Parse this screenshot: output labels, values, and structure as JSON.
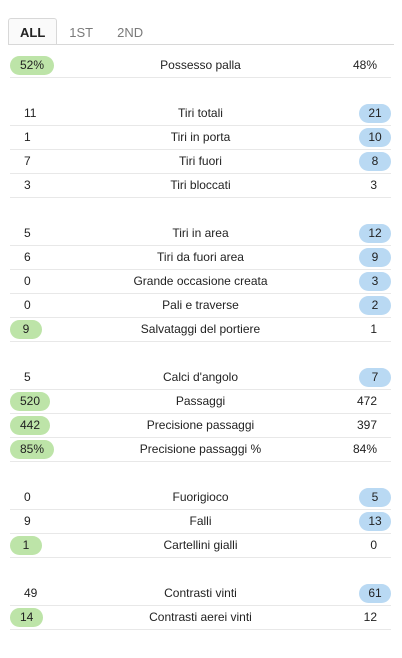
{
  "tabs": [
    {
      "label": "ALL",
      "active": true
    },
    {
      "label": "1ST",
      "active": false
    },
    {
      "label": "2ND",
      "active": false
    }
  ],
  "colors": {
    "home_highlight": "#bde4a8",
    "away_highlight": "#b9d9f3",
    "divider": "#e8e8e8"
  },
  "groups": [
    {
      "rows": [
        {
          "label": "Possesso palla",
          "home": "52%",
          "away": "48%",
          "leader": "home"
        }
      ]
    },
    {
      "rows": [
        {
          "label": "Tiri totali",
          "home": "11",
          "away": "21",
          "leader": "away"
        },
        {
          "label": "Tiri in porta",
          "home": "1",
          "away": "10",
          "leader": "away"
        },
        {
          "label": "Tiri fuori",
          "home": "7",
          "away": "8",
          "leader": "away"
        },
        {
          "label": "Tiri bloccati",
          "home": "3",
          "away": "3",
          "leader": "none"
        }
      ]
    },
    {
      "rows": [
        {
          "label": "Tiri in area",
          "home": "5",
          "away": "12",
          "leader": "away"
        },
        {
          "label": "Tiri da fuori area",
          "home": "6",
          "away": "9",
          "leader": "away"
        },
        {
          "label": "Grande occasione creata",
          "home": "0",
          "away": "3",
          "leader": "away"
        },
        {
          "label": "Pali e traverse",
          "home": "0",
          "away": "2",
          "leader": "away"
        },
        {
          "label": "Salvataggi del portiere",
          "home": "9",
          "away": "1",
          "leader": "home"
        }
      ]
    },
    {
      "rows": [
        {
          "label": "Calci d'angolo",
          "home": "5",
          "away": "7",
          "leader": "away"
        },
        {
          "label": "Passaggi",
          "home": "520",
          "away": "472",
          "leader": "home"
        },
        {
          "label": "Precisione passaggi",
          "home": "442",
          "away": "397",
          "leader": "home"
        },
        {
          "label": "Precisione passaggi %",
          "home": "85%",
          "away": "84%",
          "leader": "home"
        }
      ]
    },
    {
      "rows": [
        {
          "label": "Fuorigioco",
          "home": "0",
          "away": "5",
          "leader": "away"
        },
        {
          "label": "Falli",
          "home": "9",
          "away": "13",
          "leader": "away"
        },
        {
          "label": "Cartellini gialli",
          "home": "1",
          "away": "0",
          "leader": "home"
        }
      ]
    },
    {
      "rows": [
        {
          "label": "Contrasti vinti",
          "home": "49",
          "away": "61",
          "leader": "away"
        },
        {
          "label": "Contrasti aerei vinti",
          "home": "14",
          "away": "12",
          "leader": "home"
        }
      ]
    }
  ]
}
